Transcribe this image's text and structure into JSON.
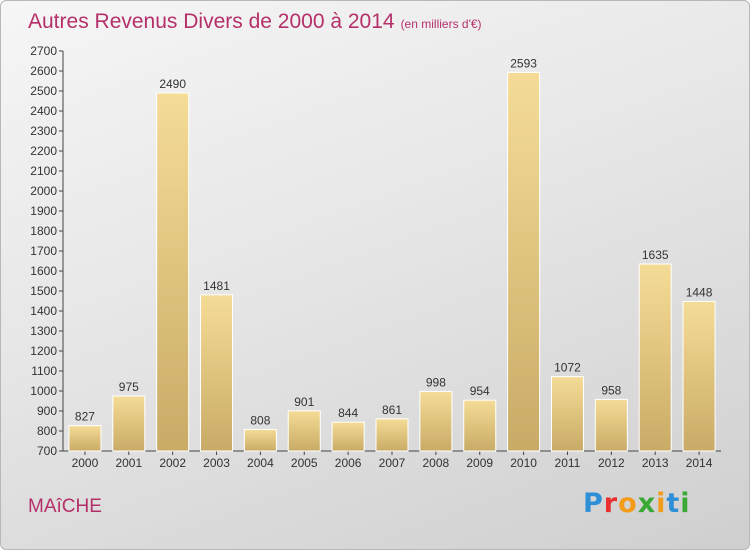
{
  "title": "Autres Revenus Divers de 2000 à 2014",
  "unit": "(en milliers d'€)",
  "commune": "MAîCHE",
  "brand": {
    "letters": [
      "P",
      "r",
      "o",
      "x",
      "i",
      "t",
      "i"
    ],
    "colors": [
      "#2e8fd6",
      "#e8312f",
      "#f39c1a",
      "#3aa935",
      "#f39c1a",
      "#2e8fd6",
      "#3aa935"
    ]
  },
  "chart_data": {
    "type": "bar",
    "categories": [
      "2000",
      "2001",
      "2002",
      "2003",
      "2004",
      "2005",
      "2006",
      "2007",
      "2008",
      "2009",
      "2010",
      "2011",
      "2012",
      "2013",
      "2014"
    ],
    "values": [
      827,
      975,
      2490,
      1481,
      808,
      901,
      844,
      861,
      998,
      954,
      2593,
      1072,
      958,
      1635,
      1448
    ],
    "ylim": [
      700,
      2700
    ],
    "ytick_step": 100,
    "grid": false,
    "colors": {
      "bar_light": "#f5dc96",
      "bar_dark": "#c8ab66",
      "bar_stroke": "#ffffff",
      "axis": "#444444",
      "text": "#333333"
    }
  }
}
